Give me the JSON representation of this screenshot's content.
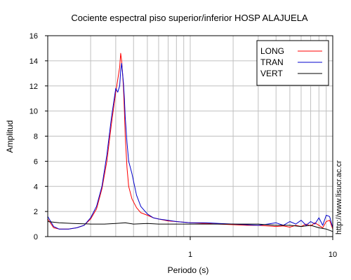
{
  "chart_data": {
    "type": "line",
    "title": "Cociente espectral piso superior/inferior  HOSP ALAJUELA",
    "xlabel": "Periodo (s)",
    "ylabel": "Amplitud",
    "xscale": "log",
    "xlim": [
      0.1,
      10
    ],
    "ylim": [
      0,
      16
    ],
    "xticks": [
      1,
      10
    ],
    "xtick_labels": [
      "1",
      "10"
    ],
    "yticks": [
      0,
      2,
      4,
      6,
      8,
      10,
      12,
      14,
      16
    ],
    "ytick_labels": [
      "0",
      "2",
      "4",
      "6",
      "8",
      "10",
      "12",
      "14",
      "16"
    ],
    "grid": true,
    "legend_position": "top-right",
    "side_text": "http://www.lisucr.ac.cr",
    "series": [
      {
        "name": "LONG",
        "color": "#ff0000",
        "x": [
          0.1,
          0.11,
          0.12,
          0.14,
          0.16,
          0.18,
          0.2,
          0.22,
          0.24,
          0.26,
          0.28,
          0.3,
          0.31,
          0.32,
          0.325,
          0.33,
          0.335,
          0.34,
          0.345,
          0.35,
          0.36,
          0.37,
          0.39,
          0.42,
          0.45,
          0.5,
          0.55,
          0.6,
          0.7,
          0.8,
          1.0,
          1.3,
          1.6,
          2.0,
          2.5,
          3.0,
          3.5,
          4.0,
          4.5,
          5.0,
          5.5,
          6.0,
          6.5,
          7.0,
          7.5,
          8.0,
          8.5,
          9.0,
          9.5,
          10.0
        ],
        "y": [
          1.4,
          0.7,
          0.6,
          0.6,
          0.7,
          0.9,
          1.4,
          2.2,
          3.8,
          6.0,
          9.0,
          11.5,
          12.5,
          13.5,
          14.6,
          14.0,
          13.0,
          11.8,
          10.0,
          8.0,
          5.5,
          4.0,
          3.0,
          2.3,
          1.9,
          1.7,
          1.5,
          1.4,
          1.25,
          1.2,
          1.1,
          1.05,
          1.0,
          0.95,
          0.9,
          0.9,
          0.85,
          0.8,
          0.85,
          0.75,
          0.9,
          0.8,
          1.0,
          0.85,
          1.1,
          0.9,
          0.7,
          1.2,
          1.3,
          0.6
        ]
      },
      {
        "name": "TRAN",
        "color": "#0000cc",
        "x": [
          0.1,
          0.11,
          0.12,
          0.14,
          0.16,
          0.18,
          0.2,
          0.22,
          0.24,
          0.26,
          0.28,
          0.3,
          0.31,
          0.32,
          0.325,
          0.33,
          0.335,
          0.34,
          0.345,
          0.35,
          0.36,
          0.37,
          0.39,
          0.42,
          0.45,
          0.5,
          0.55,
          0.6,
          0.7,
          0.8,
          1.0,
          1.3,
          1.6,
          2.0,
          2.5,
          3.0,
          3.5,
          4.0,
          4.5,
          5.0,
          5.5,
          6.0,
          6.5,
          7.0,
          7.5,
          8.0,
          8.5,
          9.0,
          9.5,
          10.0
        ],
        "y": [
          1.6,
          0.8,
          0.6,
          0.6,
          0.7,
          0.9,
          1.5,
          2.4,
          4.0,
          6.5,
          9.5,
          11.8,
          11.5,
          12.0,
          13.2,
          13.8,
          13.0,
          12.2,
          11.0,
          9.5,
          7.5,
          6.0,
          5.0,
          3.3,
          2.4,
          1.8,
          1.5,
          1.4,
          1.3,
          1.2,
          1.1,
          1.1,
          1.05,
          1.0,
          0.95,
          0.9,
          1.0,
          1.1,
          0.9,
          1.2,
          1.0,
          1.3,
          0.9,
          1.2,
          1.0,
          1.5,
          0.9,
          1.7,
          1.6,
          0.7
        ]
      },
      {
        "name": "VERT",
        "color": "#000000",
        "x": [
          0.1,
          0.12,
          0.15,
          0.2,
          0.25,
          0.3,
          0.35,
          0.4,
          0.5,
          0.6,
          0.8,
          1.0,
          1.5,
          2.0,
          3.0,
          4.0,
          5.0,
          6.0,
          7.0,
          8.0,
          9.0,
          10.0
        ],
        "y": [
          1.2,
          1.1,
          1.05,
          1.0,
          1.0,
          1.05,
          1.1,
          1.0,
          1.05,
          1.0,
          1.0,
          1.0,
          1.0,
          1.0,
          1.0,
          0.9,
          0.9,
          0.8,
          0.9,
          0.7,
          0.6,
          0.4
        ]
      }
    ]
  }
}
